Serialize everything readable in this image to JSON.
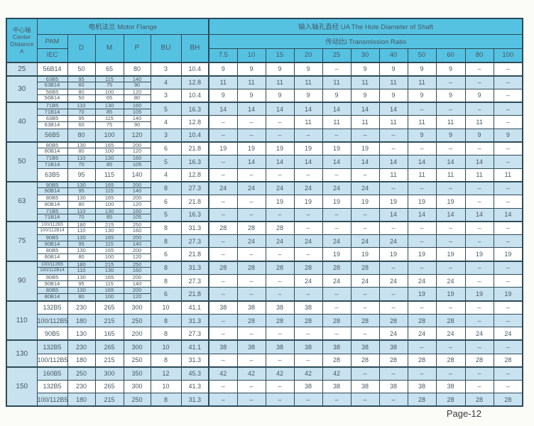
{
  "colors": {
    "header_blue": "#56c2e2",
    "row_light_blue": "#c9e2f0",
    "row_white": "#ffffff",
    "border_dark": "#2d4a57",
    "text": "#465964"
  },
  "footer": {
    "page_label": "Page-12"
  },
  "table": {
    "header": {
      "center_axis": [
        "中心轴",
        "Center",
        "Distance",
        "A"
      ],
      "motor_flange": "电机法兰 Motor Flange",
      "hole_diameter": "输入轴孔直经 UA The Hole Diameter of Shaft",
      "transmission_ratio": "传动比i Transmission Ratio",
      "pam": "PAM",
      "iec": "IEC",
      "dims": [
        "D",
        "M",
        "P",
        "BU",
        "BH"
      ],
      "ratios": [
        "7.5",
        "10",
        "15",
        "20",
        "25",
        "30",
        "40",
        "50",
        "60",
        "80",
        "100"
      ]
    },
    "groups": [
      {
        "distance": "25",
        "rows": [
          {
            "pam": [
              "56B14"
            ],
            "d": [
              "50"
            ],
            "m": [
              "65"
            ],
            "p": [
              "80"
            ],
            "bu": "3",
            "bh": "10.4",
            "ratios": [
              "9",
              "9",
              "9",
              "9",
              "–",
              "9",
              "9",
              "9",
              "9",
              "–",
              "–"
            ]
          }
        ]
      },
      {
        "distance": "30",
        "rows": [
          {
            "pam": [
              "63B5",
              "63B14"
            ],
            "d": [
              "95",
              "60"
            ],
            "m": [
              "115",
              "75"
            ],
            "p": [
              "140",
              "90"
            ],
            "bu": "4",
            "bh": "12.8",
            "ratios": [
              "11",
              "11",
              "11",
              "11",
              "11",
              "11",
              "11",
              "11",
              "–",
              "–",
              "–"
            ]
          },
          {
            "pam": [
              "56B5",
              "56B14"
            ],
            "d": [
              "80",
              "50"
            ],
            "m": [
              "100",
              "65"
            ],
            "p": [
              "120",
              "80"
            ],
            "bu": "3",
            "bh": "10.4",
            "ratios": [
              "9",
              "9",
              "9",
              "9",
              "9",
              "9",
              "9",
              "9",
              "9",
              "9",
              "–"
            ]
          }
        ]
      },
      {
        "distance": "40",
        "rows": [
          {
            "pam": [
              "71B5",
              "71B14"
            ],
            "d": [
              "110",
              "70"
            ],
            "m": [
              "130",
              "85"
            ],
            "p": [
              "160",
              "105"
            ],
            "bu": "5",
            "bh": "16.3",
            "ratios": [
              "14",
              "14",
              "14",
              "14",
              "14",
              "14",
              "14",
              "–",
              "–",
              "–",
              "–"
            ]
          },
          {
            "pam": [
              "63B5",
              "63B14"
            ],
            "d": [
              "95",
              "60"
            ],
            "m": [
              "115",
              "75"
            ],
            "p": [
              "140",
              "90"
            ],
            "bu": "4",
            "bh": "12.8",
            "ratios": [
              "–",
              "–",
              "–",
              "11",
              "11",
              "11",
              "11",
              "11",
              "11",
              "11",
              "–"
            ]
          },
          {
            "pam": [
              "56B5"
            ],
            "d": [
              "80"
            ],
            "m": [
              "100"
            ],
            "p": [
              "120"
            ],
            "bu": "3",
            "bh": "10.4",
            "ratios": [
              "–",
              "–",
              "–",
              "–",
              "–",
              "–",
              "–",
              "9",
              "9",
              "9",
              "9"
            ]
          }
        ]
      },
      {
        "distance": "50",
        "rows": [
          {
            "pam": [
              "80B5",
              "80B14"
            ],
            "d": [
              "130",
              "80"
            ],
            "m": [
              "165",
              "100"
            ],
            "p": [
              "200",
              "120"
            ],
            "bu": "6",
            "bh": "21.8",
            "ratios": [
              "19",
              "19",
              "19",
              "19",
              "19",
              "19",
              "–",
              "–",
              "–",
              "–",
              "–"
            ]
          },
          {
            "pam": [
              "71B5",
              "71B14"
            ],
            "d": [
              "110",
              "70"
            ],
            "m": [
              "130",
              "85"
            ],
            "p": [
              "160",
              "105"
            ],
            "bu": "5",
            "bh": "16.3",
            "ratios": [
              "–",
              "14",
              "14",
              "14",
              "14",
              "14",
              "14",
              "14",
              "14",
              "14",
              "–"
            ]
          },
          {
            "pam": [
              "63B5"
            ],
            "d": [
              "95"
            ],
            "m": [
              "115"
            ],
            "p": [
              "140"
            ],
            "bu": "4",
            "bh": "12.8",
            "ratios": [
              "–",
              "–",
              "–",
              "–",
              "–",
              "–",
              "11",
              "11",
              "11",
              "11",
              "11"
            ]
          }
        ]
      },
      {
        "distance": "63",
        "rows": [
          {
            "pam": [
              "90B5",
              "90B14"
            ],
            "d": [
              "130",
              "95"
            ],
            "m": [
              "165",
              "115"
            ],
            "p": [
              "200",
              "140"
            ],
            "bu": "8",
            "bh": "27.3",
            "ratios": [
              "24",
              "24",
              "24",
              "24",
              "24",
              "24",
              "–",
              "–",
              "–",
              "–",
              "–"
            ]
          },
          {
            "pam": [
              "80B5",
              "80B14"
            ],
            "d": [
              "130",
              "80"
            ],
            "m": [
              "165",
              "100"
            ],
            "p": [
              "200",
              "120"
            ],
            "bu": "6",
            "bh": "21.8",
            "ratios": [
              "–",
              "–",
              "19",
              "19",
              "19",
              "19",
              "19",
              "19",
              "19",
              "–",
              "–"
            ]
          },
          {
            "pam": [
              "71B5",
              "71B14"
            ],
            "d": [
              "110",
              "70"
            ],
            "m": [
              "130",
              "85"
            ],
            "p": [
              "160",
              "105"
            ],
            "bu": "5",
            "bh": "16.3",
            "ratios": [
              "–",
              "–",
              "–",
              "–",
              "–",
              "–",
              "14",
              "14",
              "14",
              "14",
              "14"
            ]
          }
        ]
      },
      {
        "distance": "75",
        "rows": [
          {
            "pam": [
              "100/112B5",
              "100/112B14"
            ],
            "d": [
              "180",
              "110"
            ],
            "m": [
              "215",
              "130"
            ],
            "p": [
              "250",
              "160"
            ],
            "bu": "8",
            "bh": "31.3",
            "ratios": [
              "28",
              "28",
              "28",
              "–",
              "–",
              "–",
              "–",
              "–",
              "–",
              "–",
              "–"
            ]
          },
          {
            "pam": [
              "90B5",
              "90B14"
            ],
            "d": [
              "130",
              "95"
            ],
            "m": [
              "165",
              "115"
            ],
            "p": [
              "200",
              "140"
            ],
            "bu": "8",
            "bh": "27.3",
            "ratios": [
              "–",
              "24",
              "24",
              "24",
              "24",
              "24",
              "24",
              "–",
              "–",
              "–",
              "–"
            ]
          },
          {
            "pam": [
              "80B5",
              "80B14"
            ],
            "d": [
              "130",
              "80"
            ],
            "m": [
              "165",
              "100"
            ],
            "p": [
              "200",
              "120"
            ],
            "bu": "6",
            "bh": "21.8",
            "ratios": [
              "–",
              "–",
              "–",
              "–",
              "19",
              "19",
              "19",
              "19",
              "19",
              "19",
              "19"
            ]
          }
        ]
      },
      {
        "distance": "90",
        "rows": [
          {
            "pam": [
              "100/112B5",
              "100/112B14"
            ],
            "d": [
              "180",
              "110"
            ],
            "m": [
              "215",
              "130"
            ],
            "p": [
              "250",
              "160"
            ],
            "bu": "8",
            "bh": "31.3",
            "ratios": [
              "28",
              "28",
              "28",
              "28",
              "28",
              "28",
              "–",
              "–",
              "–",
              "–",
              "–"
            ]
          },
          {
            "pam": [
              "90B5",
              "90B14"
            ],
            "d": [
              "130",
              "95"
            ],
            "m": [
              "165",
              "115"
            ],
            "p": [
              "200",
              "140"
            ],
            "bu": "8",
            "bh": "27.3",
            "ratios": [
              "–",
              "–",
              "–",
              "24",
              "24",
              "24",
              "24",
              "24",
              "24",
              "–",
              "–"
            ]
          },
          {
            "pam": [
              "80B5",
              "80B14"
            ],
            "d": [
              "130",
              "80"
            ],
            "m": [
              "165",
              "100"
            ],
            "p": [
              "200",
              "120"
            ],
            "bu": "6",
            "bh": "21.8",
            "ratios": [
              "–",
              "–",
              "–",
              "–",
              "–",
              "–",
              "–",
              "19",
              "19",
              "19",
              "19"
            ]
          }
        ]
      },
      {
        "distance": "110",
        "rows": [
          {
            "pam": [
              "132B5"
            ],
            "d": [
              "230"
            ],
            "m": [
              "265"
            ],
            "p": [
              "300"
            ],
            "bu": "10",
            "bh": "41.1",
            "ratios": [
              "38",
              "38",
              "38",
              "38",
              "–",
              "–",
              "–",
              "–",
              "–",
              "–",
              "–"
            ]
          },
          {
            "pam": [
              "100/112B5"
            ],
            "d": [
              "180"
            ],
            "m": [
              "215"
            ],
            "p": [
              "250"
            ],
            "bu": "8",
            "bh": "31.3",
            "ratios": [
              "–",
              "28",
              "28",
              "28",
              "28",
              "28",
              "28",
              "28",
              "28",
              "–",
              "–"
            ]
          },
          {
            "pam": [
              "90B5"
            ],
            "d": [
              "130"
            ],
            "m": [
              "165"
            ],
            "p": [
              "200"
            ],
            "bu": "8",
            "bh": "27.3",
            "ratios": [
              "–",
              "–",
              "–",
              "–",
              "–",
              "–",
              "24",
              "24",
              "24",
              "24",
              "24"
            ]
          }
        ]
      },
      {
        "distance": "130",
        "rows": [
          {
            "pam": [
              "132B5"
            ],
            "d": [
              "230"
            ],
            "m": [
              "265"
            ],
            "p": [
              "300"
            ],
            "bu": "10",
            "bh": "41.1",
            "ratios": [
              "38",
              "38",
              "38",
              "38",
              "38",
              "38",
              "38",
              "–",
              "–",
              "–",
              "–"
            ]
          },
          {
            "pam": [
              "100/112B5"
            ],
            "d": [
              "180"
            ],
            "m": [
              "215"
            ],
            "p": [
              "250"
            ],
            "bu": "8",
            "bh": "31.3",
            "ratios": [
              "–",
              "–",
              "–",
              "–",
              "28",
              "28",
              "28",
              "28",
              "28",
              "28",
              "28"
            ]
          }
        ]
      },
      {
        "distance": "150",
        "rows": [
          {
            "pam": [
              "160B5"
            ],
            "d": [
              "250"
            ],
            "m": [
              "300"
            ],
            "p": [
              "350"
            ],
            "bu": "12",
            "bh": "45.3",
            "ratios": [
              "42",
              "42",
              "42",
              "42",
              "42",
              "–",
              "–",
              "–",
              "–",
              "–",
              "–"
            ]
          },
          {
            "pam": [
              "132B5"
            ],
            "d": [
              "230"
            ],
            "m": [
              "265"
            ],
            "p": [
              "300"
            ],
            "bu": "10",
            "bh": "41.3",
            "ratios": [
              "–",
              "–",
              "–",
              "38",
              "38",
              "38",
              "38",
              "38",
              "38",
              "–",
              "–"
            ]
          },
          {
            "pam": [
              "100/112B5"
            ],
            "d": [
              "180"
            ],
            "m": [
              "215"
            ],
            "p": [
              "250"
            ],
            "bu": "8",
            "bh": "31.3",
            "ratios": [
              "–",
              "–",
              "–",
              "–",
              "–",
              "–",
              "–",
              "28",
              "28",
              "28",
              "28"
            ]
          }
        ]
      }
    ]
  }
}
